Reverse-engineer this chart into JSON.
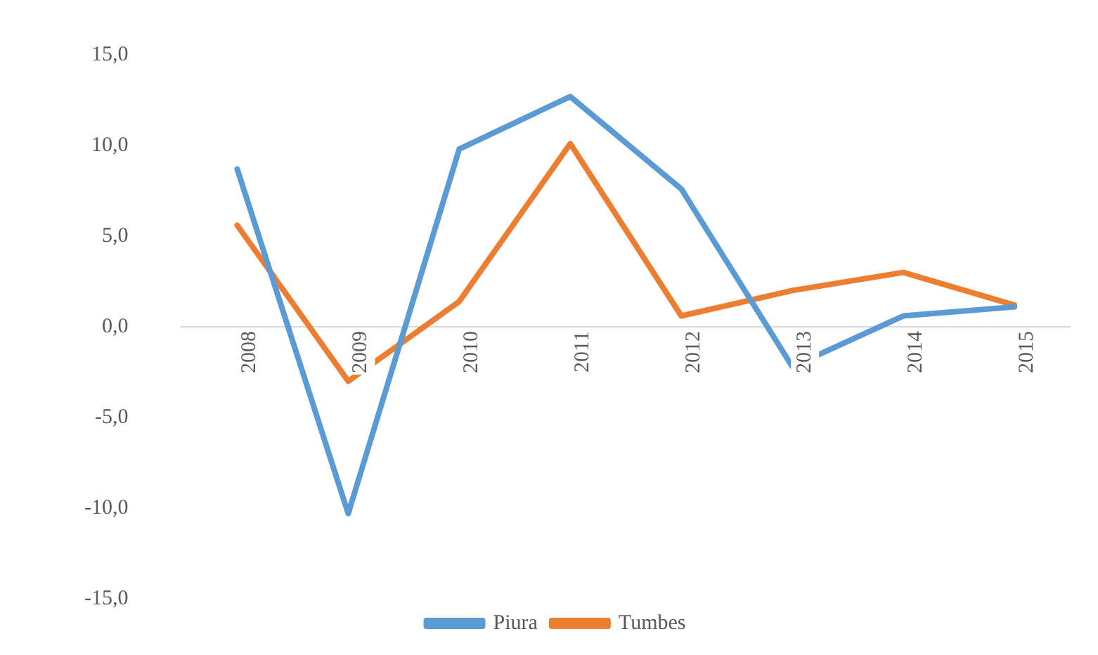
{
  "chart_data": {
    "type": "line",
    "categories": [
      "2008",
      "2009",
      "2010",
      "2011",
      "2012",
      "2013",
      "2014",
      "2015"
    ],
    "series": [
      {
        "name": "Piura",
        "color": "#5b9bd5",
        "values": [
          8.7,
          -10.3,
          9.8,
          12.7,
          7.6,
          -2.2,
          0.6,
          1.1
        ]
      },
      {
        "name": "Tumbes",
        "color": "#ed7d31",
        "values": [
          5.6,
          -3.0,
          1.4,
          10.1,
          0.6,
          2.0,
          3.0,
          1.2
        ]
      }
    ],
    "ylim": [
      -15,
      15
    ],
    "yticks": [
      {
        "value": -15,
        "label": "-15,0"
      },
      {
        "value": -10,
        "label": "-10,0"
      },
      {
        "value": -5,
        "label": "-5,0"
      },
      {
        "value": 0,
        "label": "0,0"
      },
      {
        "value": 5,
        "label": "5,0"
      },
      {
        "value": 10,
        "label": "10,0"
      },
      {
        "value": 15,
        "label": "15,0"
      }
    ],
    "grid": false,
    "legend": "bottom",
    "marker": "none",
    "line_style": "solid"
  }
}
